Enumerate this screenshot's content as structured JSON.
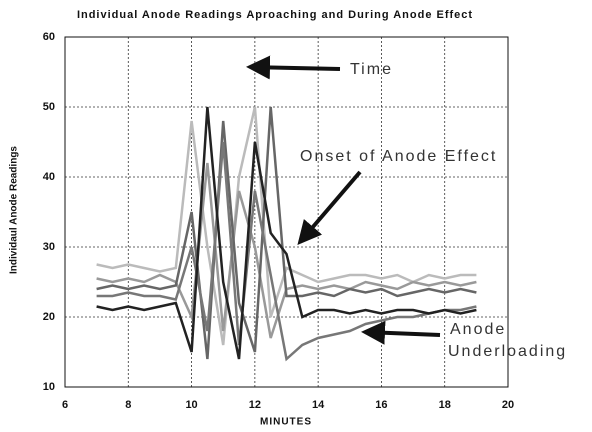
{
  "chart_data": {
    "type": "line",
    "title": "Individual Anode Readings Aproaching and During Anode Effect",
    "x_label": "MINUTES",
    "y_label": "Individaul Anode Readings",
    "x": [
      7,
      7.5,
      8,
      8.5,
      9,
      9.5,
      10,
      10.5,
      11,
      11.5,
      12,
      12.5,
      13,
      13.5,
      14,
      14.5,
      15,
      15.5,
      16,
      16.5,
      17,
      17.5,
      18,
      18.5,
      19
    ],
    "series": [
      {
        "color": "#bbbbbb",
        "values": [
          27.5,
          27,
          27.5,
          27,
          26.5,
          27,
          48,
          30,
          16,
          40,
          50,
          20,
          27,
          26,
          25,
          25.5,
          26,
          26,
          25.5,
          26,
          25,
          26,
          25.5,
          26,
          26
        ]
      },
      {
        "color": "#999999",
        "values": [
          25.5,
          25,
          25.5,
          25,
          26,
          25,
          20,
          42,
          18,
          38,
          30,
          17,
          24,
          24.5,
          24,
          24.5,
          24,
          25,
          24.5,
          24,
          25,
          24.5,
          25,
          24.5,
          25
        ]
      },
      {
        "color": "#666666",
        "values": [
          24,
          24.5,
          24,
          24.5,
          24,
          24.5,
          35,
          14,
          48,
          22,
          15,
          50,
          23,
          23,
          23.5,
          23,
          24,
          23.5,
          24,
          23,
          23.5,
          24,
          23.5,
          24,
          23.5
        ]
      },
      {
        "color": "#777777",
        "values": [
          23,
          23,
          23.5,
          23,
          23,
          22.5,
          30,
          18,
          45,
          16,
          38,
          26,
          14,
          16,
          17,
          17.5,
          18,
          19,
          19.5,
          20,
          20,
          20.5,
          21,
          21,
          21.5
        ]
      },
      {
        "color": "#222222",
        "values": [
          21.5,
          21,
          21.5,
          21,
          21.5,
          22,
          15,
          50,
          25,
          14,
          45,
          32,
          29,
          20,
          21,
          21,
          20.5,
          21,
          20.5,
          21,
          21,
          20.5,
          21,
          20.5,
          21
        ]
      }
    ],
    "xlim": [
      6,
      20
    ],
    "xticks": [
      6,
      8,
      10,
      12,
      14,
      16,
      18,
      20
    ],
    "ylim": [
      10,
      60
    ],
    "yticks": [
      10,
      20,
      30,
      40,
      50,
      60
    ],
    "grid": true,
    "annotations": [
      {
        "text": "Time"
      },
      {
        "text": "Onset of Anode Effect"
      },
      {
        "text": "Anode"
      },
      {
        "text": "Underloading"
      }
    ]
  }
}
